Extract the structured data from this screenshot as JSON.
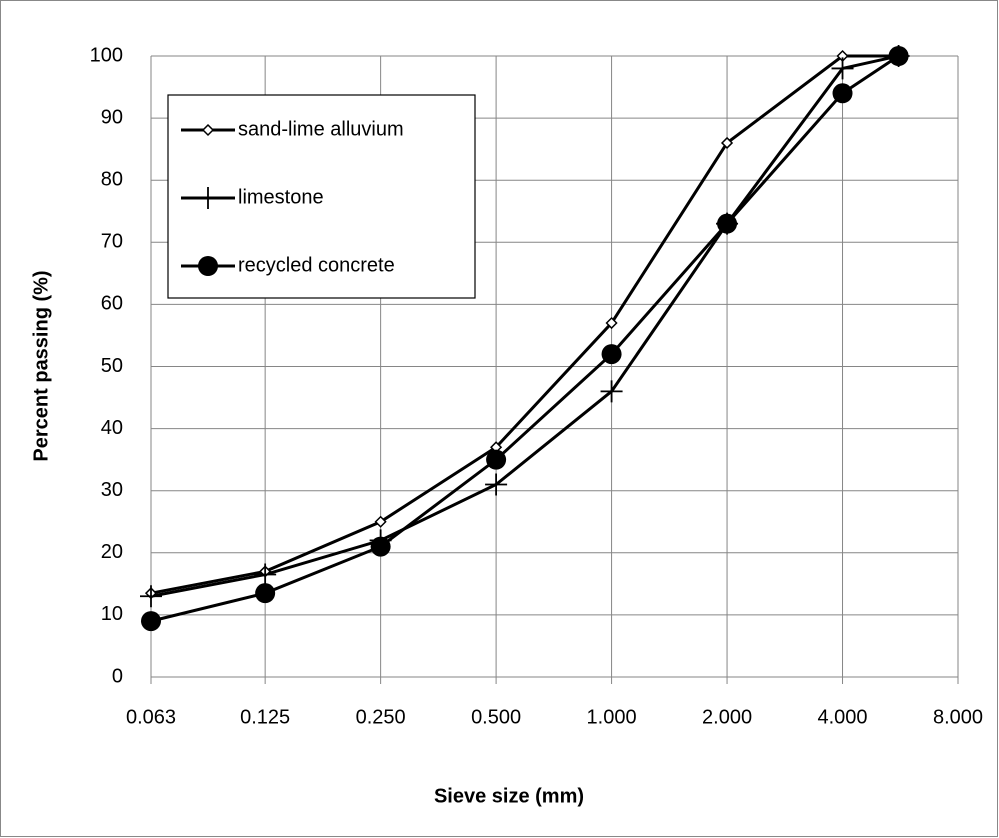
{
  "chart_data": {
    "type": "line",
    "x_label": "Sieve size (mm)",
    "y_label": "Percent passing (%)",
    "x": [
      0.063,
      0.125,
      0.25,
      0.5,
      1,
      2,
      4,
      5.6
    ],
    "series": [
      {
        "name": "sand-lime alluvium",
        "color": "#000000",
        "marker": "diamond",
        "values": [
          13.5,
          17,
          25,
          37,
          57,
          86,
          100,
          100
        ]
      },
      {
        "name": "limestone",
        "color": "#000000",
        "marker": "plus",
        "values": [
          13,
          16.5,
          22,
          31,
          46,
          73,
          98,
          100
        ]
      },
      {
        "name": "recycled concrete",
        "color": "#000000",
        "marker": "circle",
        "values": [
          9,
          13.5,
          21,
          35,
          52,
          73,
          94,
          100
        ]
      }
    ],
    "x_scale": "log",
    "xlim": [
      0.063,
      8
    ],
    "xticks": [
      0.063,
      0.125,
      {
        "value": 0.25,
        "label": "0.250"
      },
      {
        "value": 0.5,
        "label": "0.500"
      },
      {
        "value": 1,
        "label": "1.000"
      },
      {
        "value": 2,
        "label": "2.000"
      },
      {
        "value": 4,
        "label": "4.000"
      },
      {
        "value": 8,
        "label": "8.000"
      }
    ],
    "ylim": [
      0,
      100
    ],
    "yticks": [
      0,
      10,
      20,
      30,
      40,
      50,
      60,
      70,
      80,
      90,
      100
    ],
    "grid": true,
    "legend": "top-left"
  }
}
